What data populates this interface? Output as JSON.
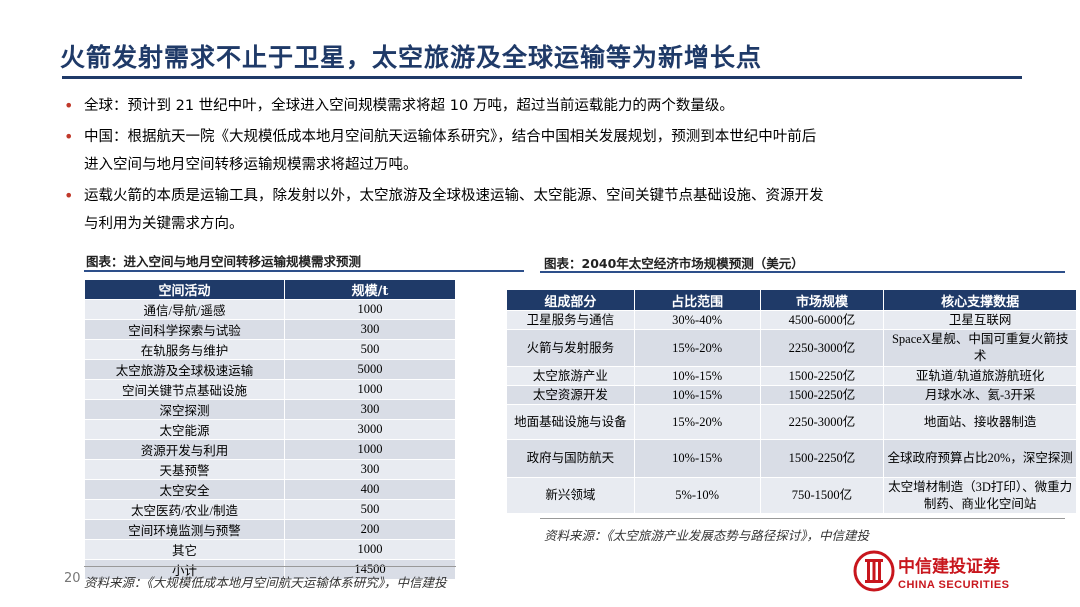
{
  "title": "火箭发射需求不止于卫星，太空旅游及全球运输等为新增长点",
  "bullets": [
    {
      "line1": "全球：预计到 21 世纪中叶，全球进入空间规模需求将超 10 万吨，超过当前运载能力的两个数量级。",
      "line2": ""
    },
    {
      "line1": "中国：根据航天一院《大规模低成本地月空间航天运输体系研究》，结合中国相关发展规划，预测到本世纪中叶前后",
      "line2": "进入空间与地月空间转移运输规模需求将超过万吨。"
    },
    {
      "line1": "运载火箭的本质是运输工具，除发射以外，太空旅游及全球极速运输、太空能源、空间关键节点基础设施、资源开发",
      "line2": "与利用为关键需求方向。"
    }
  ],
  "table1": {
    "caption": "图表：进入空间与地月空间转移运输规模需求预测",
    "headers": [
      "空间活动",
      "规模/t"
    ],
    "rows": [
      [
        "通信/导航/遥感",
        "1000"
      ],
      [
        "空间科学探索与试验",
        "300"
      ],
      [
        "在轨服务与维护",
        "500"
      ],
      [
        "太空旅游及全球极速运输",
        "5000"
      ],
      [
        "空间关键节点基础设施",
        "1000"
      ],
      [
        "深空探测",
        "300"
      ],
      [
        "太空能源",
        "3000"
      ],
      [
        "资源开发与利用",
        "1000"
      ],
      [
        "天基预警",
        "300"
      ],
      [
        "太空安全",
        "400"
      ],
      [
        "太空医药/农业/制造",
        "500"
      ],
      [
        "空间环境监测与预警",
        "200"
      ],
      [
        "其它",
        "1000"
      ],
      [
        "小计",
        "14500"
      ]
    ],
    "source": "资料来源：《大规模低成本地月空间航天运输体系研究》，中信建投"
  },
  "table2": {
    "caption": "图表：2040年太空经济市场规模预测（美元）",
    "headers": [
      "组成部分",
      "占比范围",
      "市场规模",
      "核心支撑数据"
    ],
    "rows": [
      [
        "卫星服务与通信",
        "30%-40%",
        "4500-6000亿",
        "卫星互联网"
      ],
      [
        "火箭与发射服务",
        "15%-20%",
        "2250-3000亿",
        "SpaceX星舰、中国可重复火箭技术"
      ],
      [
        "太空旅游产业",
        "10%-15%",
        "1500-2250亿",
        "亚轨道/轨道旅游航班化"
      ],
      [
        "太空资源开发",
        "10%-15%",
        "1500-2250亿",
        "月球水冰、氦-3开采"
      ],
      [
        "地面基础设施与设备",
        "15%-20%",
        "2250-3000亿",
        "地面站、接收器制造"
      ],
      [
        "政府与国防航天",
        "10%-15%",
        "1500-2250亿",
        "全球政府预算占比20%，深空探测"
      ],
      [
        "新兴领域",
        "5%-10%",
        "750-1500亿",
        "太空增材制造（3D打印）、微重力制药、商业化空间站"
      ]
    ],
    "source": "资料来源：《太空旅游产业发展态势与路径探讨》，中信建投"
  },
  "page_number": "20",
  "logo": {
    "cn": "中信建投证券",
    "en": "CHINA SECURITIES",
    "color": "#c8161d"
  }
}
